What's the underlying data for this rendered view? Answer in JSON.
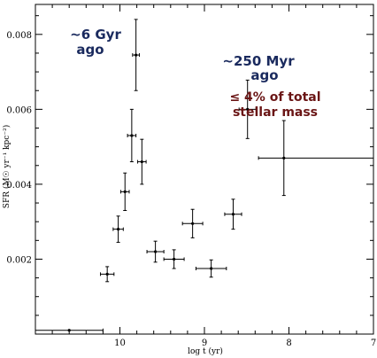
{
  "chart_data": {
    "type": "scatter",
    "xlabel": "log t (yr)",
    "ylabel": "SFR (M☉ yr⁻¹ kpc⁻²)",
    "xlim": [
      11.0,
      7.0
    ],
    "ylim": [
      0.0,
      0.0088
    ],
    "x_reversed": true,
    "x_ticks": [
      10,
      9,
      8,
      7
    ],
    "y_ticks": [
      0.002,
      0.004,
      0.006,
      0.008
    ],
    "x_tick_labels": [
      "10",
      "9",
      "8",
      "7"
    ],
    "y_tick_labels": [
      "0.002",
      "0.004",
      "0.006",
      "0.008"
    ],
    "grid": false,
    "points": [
      {
        "x": 10.6,
        "y": 0.0001,
        "xerr_lo": 0.4,
        "xerr_hi": 0.4,
        "yerr": 0
      },
      {
        "x": 10.15,
        "y": 0.0016,
        "xerr_lo": 0.08,
        "xerr_hi": 0.08,
        "yerr": 0.0002
      },
      {
        "x": 10.02,
        "y": 0.0028,
        "xerr_lo": 0.06,
        "xerr_hi": 0.06,
        "yerr": 0.00035
      },
      {
        "x": 9.94,
        "y": 0.0038,
        "xerr_lo": 0.05,
        "xerr_hi": 0.05,
        "yerr": 0.0005
      },
      {
        "x": 9.86,
        "y": 0.0053,
        "xerr_lo": 0.05,
        "xerr_hi": 0.05,
        "yerr": 0.0007
      },
      {
        "x": 9.81,
        "y": 0.00745,
        "xerr_lo": 0.04,
        "xerr_hi": 0.04,
        "yerr": 0.00095
      },
      {
        "x": 9.74,
        "y": 0.0046,
        "xerr_lo": 0.05,
        "xerr_hi": 0.05,
        "yerr": 0.0006
      },
      {
        "x": 9.58,
        "y": 0.0022,
        "xerr_lo": 0.1,
        "xerr_hi": 0.1,
        "yerr": 0.00028
      },
      {
        "x": 9.36,
        "y": 0.002,
        "xerr_lo": 0.12,
        "xerr_hi": 0.12,
        "yerr": 0.00025
      },
      {
        "x": 9.14,
        "y": 0.00295,
        "xerr_lo": 0.12,
        "xerr_hi": 0.12,
        "yerr": 0.00038
      },
      {
        "x": 8.92,
        "y": 0.00175,
        "xerr_lo": 0.18,
        "xerr_hi": 0.18,
        "yerr": 0.00023
      },
      {
        "x": 8.66,
        "y": 0.0032,
        "xerr_lo": 0.1,
        "xerr_hi": 0.1,
        "yerr": 0.0004
      },
      {
        "x": 8.49,
        "y": 0.006,
        "xerr_lo": 0.1,
        "xerr_hi": 0.1,
        "yerr": 0.00078
      },
      {
        "x": 8.06,
        "y": 0.0047,
        "xerr_lo": 0.3,
        "xerr_hi": 1.06,
        "yerr": 0.001
      }
    ],
    "annotations": [
      {
        "lines": [
          "~6 Gyr",
          "ago"
        ],
        "color": "#1a2a5e"
      },
      {
        "lines": [
          "~250 Myr",
          "ago"
        ],
        "color": "#1a2a5e"
      },
      {
        "lines": [
          "≤ 4% of total",
          "stellar mass"
        ],
        "color": "#6a1515"
      }
    ]
  }
}
